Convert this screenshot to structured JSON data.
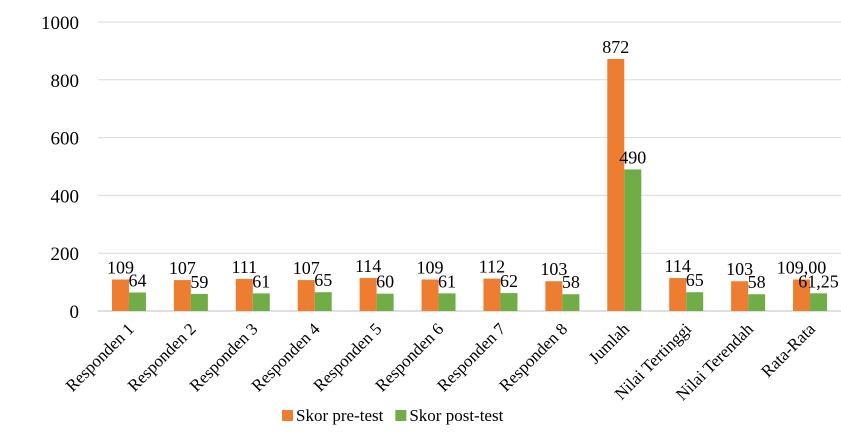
{
  "chart_data": {
    "type": "bar",
    "title": "",
    "xlabel": "",
    "ylabel": "",
    "ylim": [
      0,
      1000
    ],
    "yticks": [
      0,
      200,
      400,
      600,
      800,
      1000
    ],
    "grid": true,
    "legend_position": "bottom",
    "categories": [
      "Responden 1",
      "Responden 2",
      "Responden 3",
      "Responden 4",
      "Responden 5",
      "Responden 6",
      "Responden 7",
      "Responden 8",
      "Jumlah",
      "Nilai Tertinggi",
      "Nilai Terendah",
      "Rata-Rata"
    ],
    "series": [
      {
        "name": "Skor pre-test",
        "color": "#ed7d31",
        "values": [
          109,
          107,
          111,
          107,
          114,
          109,
          112,
          103,
          872,
          114,
          103,
          109
        ],
        "labels": [
          "109",
          "107",
          "111",
          "107",
          "114",
          "109",
          "112",
          "103",
          "872",
          "114",
          "103",
          "109,00"
        ]
      },
      {
        "name": "Skor post-test",
        "color": "#70ad47",
        "values": [
          64,
          59,
          61,
          65,
          60,
          61,
          62,
          58,
          490,
          65,
          58,
          61.25
        ],
        "labels": [
          "64",
          "59",
          "61",
          "65",
          "60",
          "61",
          "62",
          "58",
          "490",
          "65",
          "58",
          "61,25"
        ]
      }
    ]
  }
}
